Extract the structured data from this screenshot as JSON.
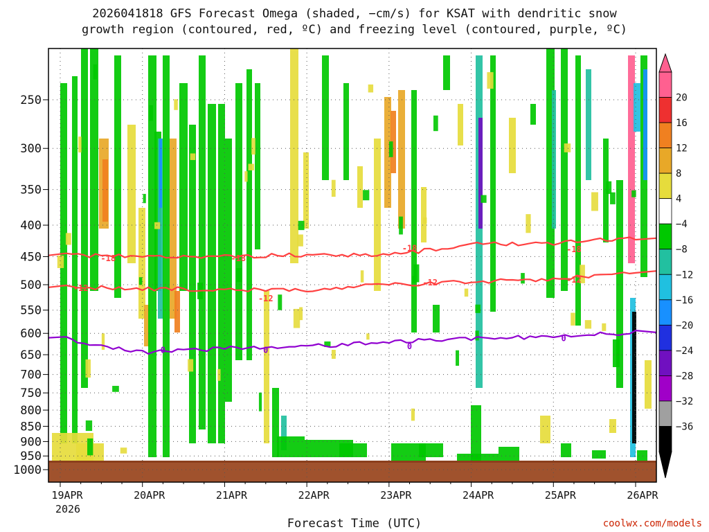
{
  "title": {
    "line1": "2026041818 GFS Forecast Omega (shaded, −cm/s) for KSAT with dendritic snow",
    "line2": "growth region (contoured, red, ºC) and freezing level (contoured, purple, ºC)"
  },
  "credit": "coolwx.com/models",
  "chart_data": {
    "type": "heatmap",
    "xlabel": "Forecast Time (UTC)",
    "ylabel": "",
    "x_ticks": [
      "19APR",
      "20APR",
      "21APR",
      "22APR",
      "23APR",
      "24APR",
      "25APR",
      "26APR"
    ],
    "x_year_label": "2026",
    "y_ticks": [
      250,
      300,
      350,
      400,
      450,
      500,
      550,
      600,
      650,
      700,
      750,
      800,
      850,
      900,
      950,
      1000
    ],
    "y_scale": "log-pressure",
    "ylim": [
      1000,
      200
    ],
    "grid": true,
    "legend": {
      "placement": "right",
      "labels": [
        "20",
        "16",
        "12",
        "8",
        "4",
        "−4",
        "−8",
        "−12",
        "−16",
        "−20",
        "−24",
        "−28",
        "−32",
        "−36"
      ],
      "colors": [
        "#ff6090",
        "#ee3030",
        "#f08020",
        "#e8a828",
        "#e6dc3c",
        "#ffffff",
        "#00c800",
        "#22c0a0",
        "#20c0e0",
        "#1890ff",
        "#2030e0",
        "#7010c0",
        "#a000c8",
        "#a0a0a0",
        "#000000"
      ]
    },
    "series": [
      {
        "name": "-18",
        "color": "#ff4040",
        "x": [
          "2026-04-19 00",
          "2026-04-20 00",
          "2026-04-21 00",
          "2026-04-22 00",
          "2026-04-23 00",
          "2026-04-24 00",
          "2026-04-25 00",
          "2026-04-26 00"
        ],
        "values": [
          448,
          448,
          450,
          447,
          448,
          430,
          428,
          420
        ]
      },
      {
        "name": "-12",
        "color": "#ff4040",
        "x": [
          "2026-04-19 00",
          "2026-04-20 00",
          "2026-04-21 00",
          "2026-04-22 00",
          "2026-04-23 00",
          "2026-04-24 00",
          "2026-04-25 00",
          "2026-04-26 00"
        ],
        "values": [
          505,
          507,
          510,
          510,
          500,
          495,
          490,
          475
        ]
      },
      {
        "name": "0",
        "color": "#9000d0",
        "x": [
          "2026-04-19 00",
          "2026-04-20 00",
          "2026-04-21 00",
          "2026-04-22 00",
          "2026-04-23 00",
          "2026-04-24 00",
          "2026-04-25 00",
          "2026-04-26 00"
        ],
        "values": [
          610,
          645,
          635,
          630,
          620,
          612,
          608,
          598
        ]
      }
    ],
    "contour_labels": [
      {
        "text": "-18",
        "x": "2026-04-19 14",
        "y": 452
      },
      {
        "text": "-18",
        "x": "2026-04-21 04",
        "y": 452
      },
      {
        "text": "-18",
        "x": "2026-04-23 06",
        "y": 435
      },
      {
        "text": "-18",
        "x": "2026-04-25 06",
        "y": 437
      },
      {
        "text": "-12",
        "x": "2026-04-19 06",
        "y": 505
      },
      {
        "text": "-12",
        "x": "2026-04-21 12",
        "y": 525
      },
      {
        "text": "-12",
        "x": "2026-04-23 12",
        "y": 495
      },
      {
        "text": "-12",
        "x": "2026-04-25 06",
        "y": 490
      },
      {
        "text": "0",
        "x": "2026-04-20 06",
        "y": 637
      },
      {
        "text": "0",
        "x": "2026-04-21 12",
        "y": 637
      },
      {
        "text": "0",
        "x": "2026-04-23 06",
        "y": 628
      },
      {
        "text": "0",
        "x": "2026-04-25 03",
        "y": 610
      }
    ]
  }
}
